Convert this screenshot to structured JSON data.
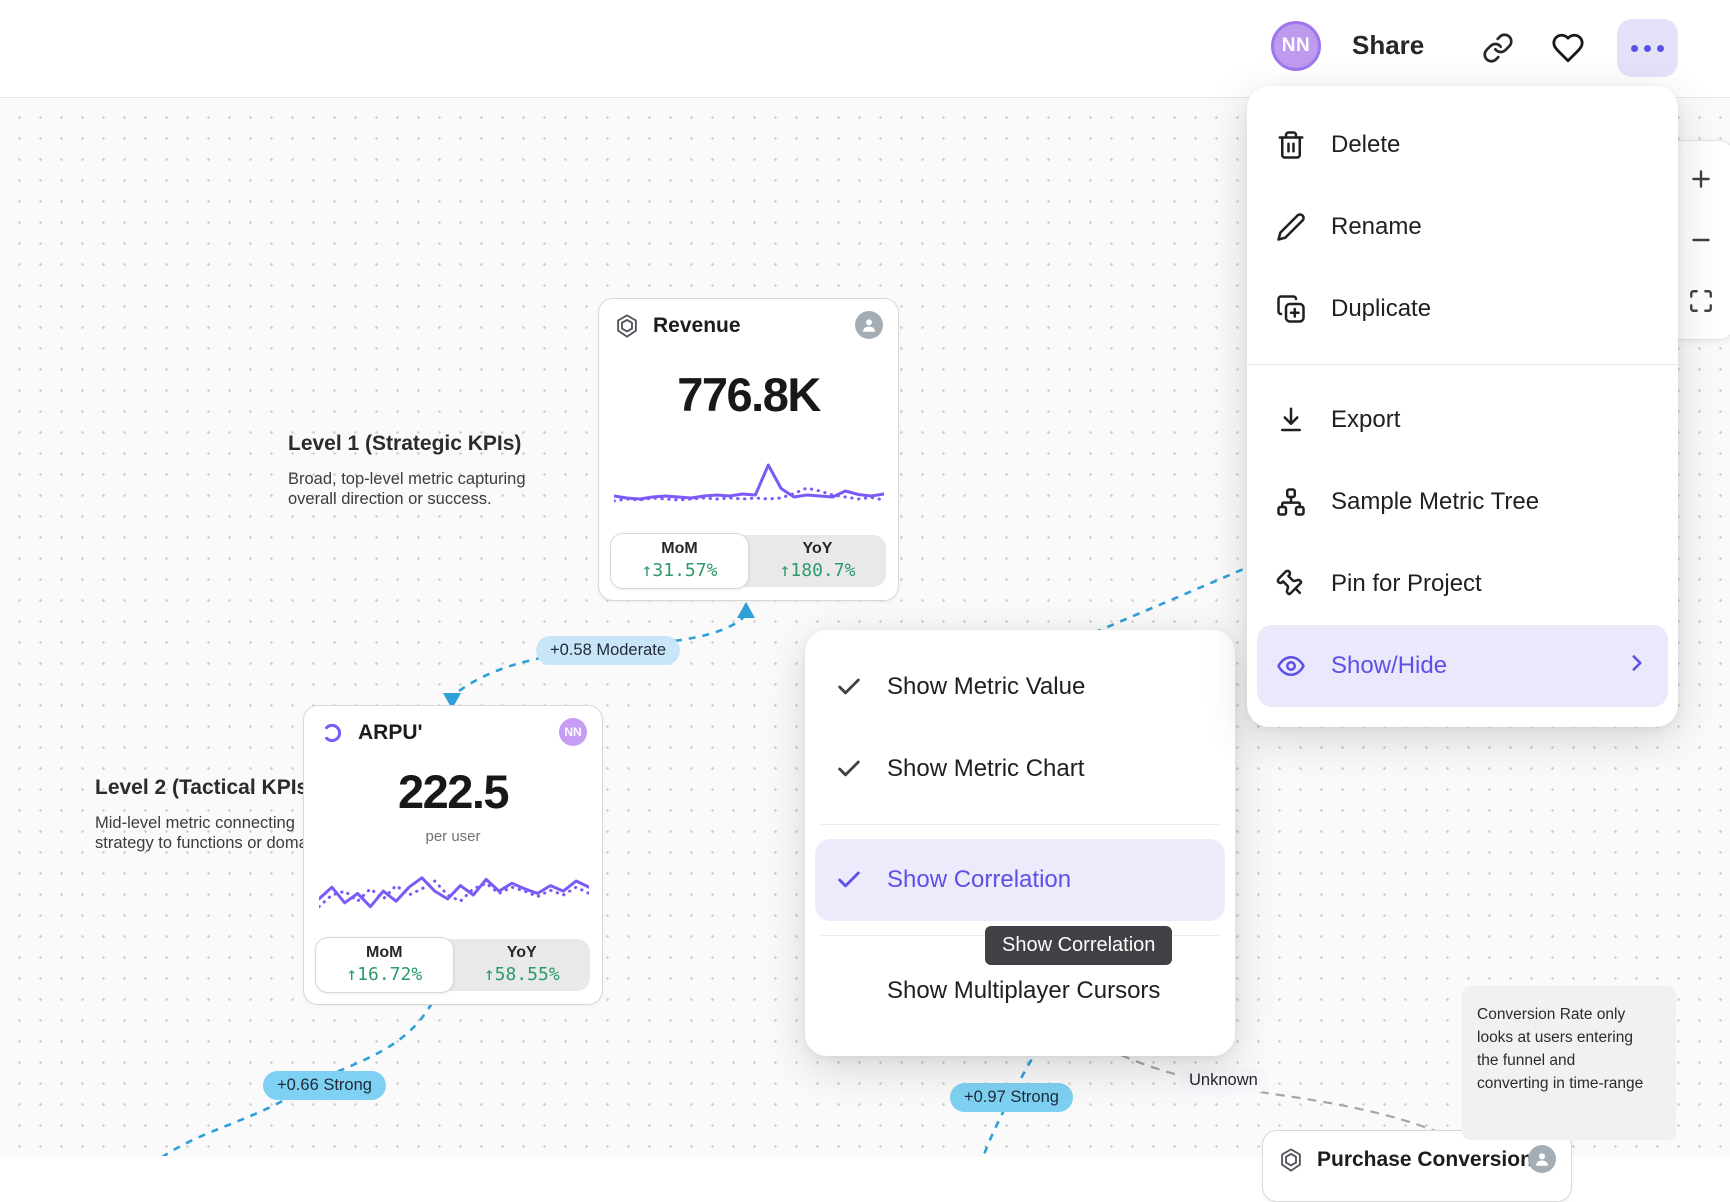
{
  "topbar": {
    "avatar_initials": "NN",
    "share_label": "Share"
  },
  "more_menu": {
    "items": [
      {
        "label": "Delete"
      },
      {
        "label": "Rename"
      },
      {
        "label": "Duplicate"
      },
      {
        "label": "Export"
      },
      {
        "label": "Sample Metric Tree"
      },
      {
        "label": "Pin for Project"
      },
      {
        "label": "Show/Hide"
      }
    ]
  },
  "show_hide_submenu": {
    "items": [
      {
        "label": "Show Metric Value",
        "checked": true
      },
      {
        "label": "Show Metric Chart",
        "checked": true
      },
      {
        "label": "Show Correlation",
        "checked": true,
        "highlighted": true
      },
      {
        "label": "Show Multiplayer Cursors",
        "checked": false
      }
    ]
  },
  "tooltip": {
    "text": "Show Correlation"
  },
  "annotations": {
    "level1": {
      "title": "Level 1 (Strategic KPIs)",
      "body": "Broad, top-level metric capturing\noverall direction or success."
    },
    "level2": {
      "title": "Level 2 (Tactical KPIs",
      "body": "Mid-level metric connecting\nstrategy to functions or doma"
    }
  },
  "cards": {
    "revenue": {
      "title": "Revenue",
      "value": "776.8K",
      "mom_label": "MoM",
      "mom_value": "↑31.57%",
      "yoy_label": "YoY",
      "yoy_value": "↑180.7%"
    },
    "arpu": {
      "title": "ARPU'",
      "value": "222.5",
      "unit": "per user",
      "avatar_initials": "NN",
      "mom_label": "MoM",
      "mom_value": "↑16.72%",
      "yoy_label": "YoY",
      "yoy_value": "↑58.55%"
    },
    "purchase": {
      "title": "Purchase Conversion R"
    }
  },
  "correlation_badges": [
    {
      "label": "+0.58 Moderate",
      "strength": "moderate"
    },
    {
      "label": "+0.66 Strong",
      "strength": "strong"
    },
    {
      "label": "+0.97 Strong",
      "strength": "strong"
    },
    {
      "label": "Unknown",
      "strength": "unknown"
    }
  ],
  "note": {
    "text": "Conversion Rate only\nlooks at users entering\nthe funnel and\nconverting in time-range"
  },
  "sparklines": {
    "revenue": {
      "solid": [
        0.3,
        0.26,
        0.24,
        0.28,
        0.3,
        0.28,
        0.26,
        0.3,
        0.32,
        0.3,
        0.34,
        0.32,
        0.92,
        0.45,
        0.28,
        0.32,
        0.3,
        0.28,
        0.4,
        0.33,
        0.3,
        0.34
      ],
      "dotted": [
        0.2,
        0.24,
        0.22,
        0.26,
        0.24,
        0.22,
        0.24,
        0.26,
        0.24,
        0.26,
        0.24,
        0.26,
        0.24,
        0.26,
        0.35,
        0.46,
        0.4,
        0.32,
        0.28,
        0.24,
        0.27,
        0.22
      ]
    },
    "arpu": {
      "solid": [
        0.45,
        0.6,
        0.4,
        0.52,
        0.35,
        0.55,
        0.42,
        0.6,
        0.72,
        0.55,
        0.45,
        0.62,
        0.5,
        0.7,
        0.55,
        0.65,
        0.58,
        0.52,
        0.62,
        0.55,
        0.68,
        0.6
      ],
      "dotted": [
        0.35,
        0.5,
        0.55,
        0.42,
        0.58,
        0.45,
        0.62,
        0.5,
        0.58,
        0.68,
        0.5,
        0.42,
        0.58,
        0.65,
        0.52,
        0.6,
        0.55,
        0.48,
        0.56,
        0.5,
        0.6,
        0.52
      ]
    }
  },
  "colors": {
    "accent_purple": "#5b51e8",
    "sparkline_purple": "#7c5af8",
    "positive_green": "#2b9a6a",
    "correlation_blue": "#2e9fd8",
    "badge_strong_blue": "#7ed1f2",
    "badge_moderate_blue": "#c8e6f8"
  }
}
